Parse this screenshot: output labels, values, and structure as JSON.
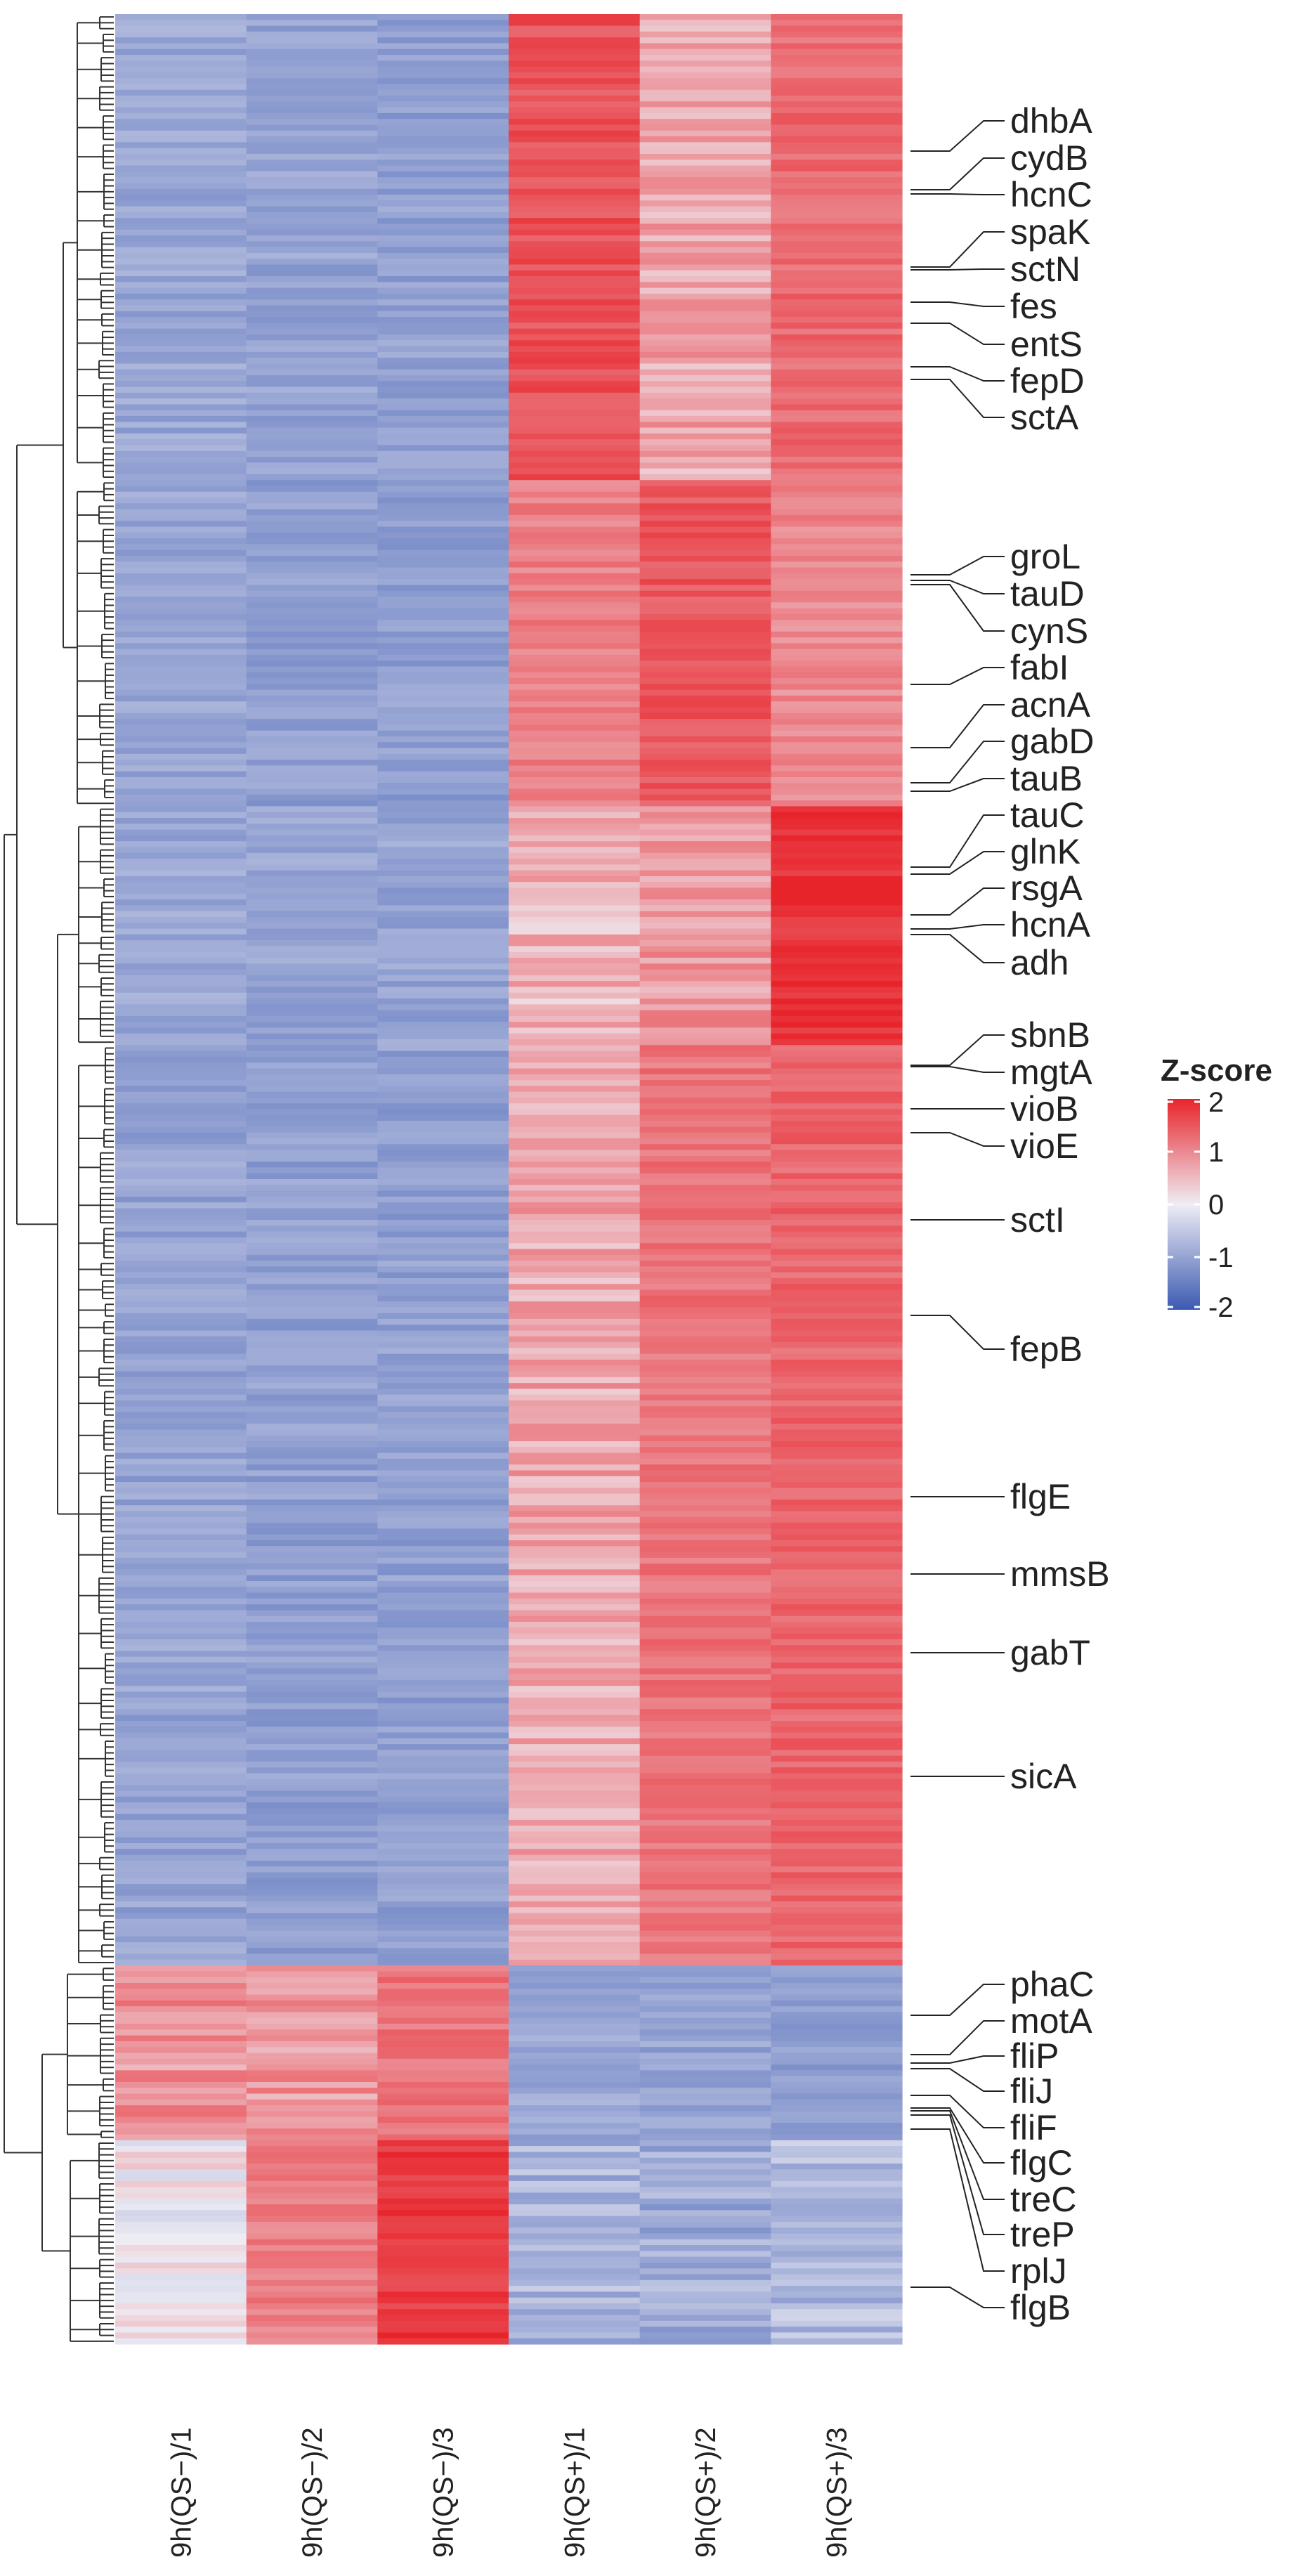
{
  "chart_data": {
    "type": "heatmap",
    "title": "",
    "columns": [
      "9h(QS−)/1",
      "9h(QS−)/2",
      "9h(QS−)/3",
      "9h(QS+)/1",
      "9h(QS+)/2",
      "9h(QS+)/3"
    ],
    "row_clusters": [
      {
        "name": "cluster-1",
        "values": [
          -0.95,
          -1.0,
          -1.05,
          1.55,
          0.7,
          1.3
        ]
      },
      {
        "name": "cluster-2",
        "values": [
          -0.95,
          -1.05,
          -1.05,
          1.1,
          1.5,
          1.0
        ]
      },
      {
        "name": "cluster-3",
        "values": [
          -0.95,
          -1.0,
          -1.0,
          0.55,
          0.85,
          1.85
        ]
      },
      {
        "name": "cluster-4",
        "values": [
          -1.0,
          -1.05,
          -1.05,
          0.7,
          1.2,
          1.35
        ]
      },
      {
        "name": "cluster-5",
        "values": [
          0.9,
          0.85,
          1.2,
          -0.95,
          -1.0,
          -1.05
        ]
      },
      {
        "name": "cluster-6",
        "values": [
          0.05,
          1.1,
          1.8,
          -0.8,
          -0.9,
          -0.7
        ]
      }
    ],
    "gene_labels": [
      "dhbA",
      "cydB",
      "hcnC",
      "spaK",
      "sctN",
      "fes",
      "entS",
      "fepD",
      "sctA",
      "groL",
      "tauD",
      "cynS",
      "fabI",
      "acnA",
      "gabD",
      "tauB",
      "tauC",
      "glnK",
      "rsgA",
      "hcnA",
      "adh",
      "sbnB",
      "mgtA",
      "vioB",
      "vioE",
      "sctI",
      "fepB",
      "flgE",
      "mmsB",
      "gabT",
      "sicA",
      "phaC",
      "motA",
      "fliP",
      "fliJ",
      "fliF",
      "flgC",
      "treC",
      "treP",
      "rplJ",
      "flgB"
    ],
    "legend": {
      "title": "Z-score",
      "ticks": [
        "2",
        "1",
        "0",
        "-1",
        "-2"
      ],
      "range": [
        -2,
        2
      ],
      "colors": {
        "low": "#3c5ab2",
        "mid": "#efedf4",
        "high": "#e8242b"
      }
    }
  }
}
